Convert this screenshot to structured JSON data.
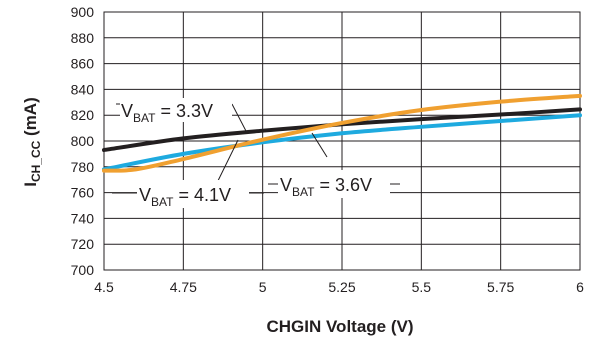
{
  "chart_data": {
    "type": "line",
    "title": "",
    "xlabel": "CHGIN Voltage (V)",
    "ylabel": {
      "main": "I",
      "sub": "CH_CC",
      "rest": " (mA)"
    },
    "xlim": [
      4.5,
      6
    ],
    "ylim": [
      700,
      900
    ],
    "xticks": [
      "4.5",
      "4.75",
      "5",
      "5.25",
      "5.5",
      "5.75",
      "6"
    ],
    "yticks": [
      "700",
      "720",
      "740",
      "760",
      "780",
      "800",
      "820",
      "840",
      "860",
      "880",
      "900"
    ],
    "grid": true,
    "series": [
      {
        "name": "VBAT = 3.3V",
        "color": "#231f20",
        "x": [
          4.5,
          4.75,
          5,
          5.25,
          5.5,
          5.75,
          6
        ],
        "y": [
          793,
          802,
          808,
          813,
          817,
          820.5,
          824.5
        ]
      },
      {
        "name": "VBAT = 3.6V",
        "color": "#1eaadf",
        "x": [
          4.5,
          4.75,
          5,
          5.25,
          5.5,
          5.75,
          6
        ],
        "y": [
          778,
          790,
          799,
          806,
          811,
          815.5,
          820
        ]
      },
      {
        "name": "VBAT = 4.1V",
        "color": "#f0a030",
        "x": [
          4.5,
          4.6,
          4.75,
          5,
          5.25,
          5.5,
          5.75,
          6
        ],
        "y": [
          777,
          778,
          786,
          801,
          814,
          824,
          830.5,
          835
        ]
      }
    ],
    "annotations": [
      {
        "main": "V",
        "sub": "BAT",
        "rest": " = 3.3V"
      },
      {
        "main": "V",
        "sub": "BAT",
        "rest": " = 4.1V"
      },
      {
        "main": "V",
        "sub": "BAT",
        "rest": " = 3.6V"
      }
    ]
  }
}
